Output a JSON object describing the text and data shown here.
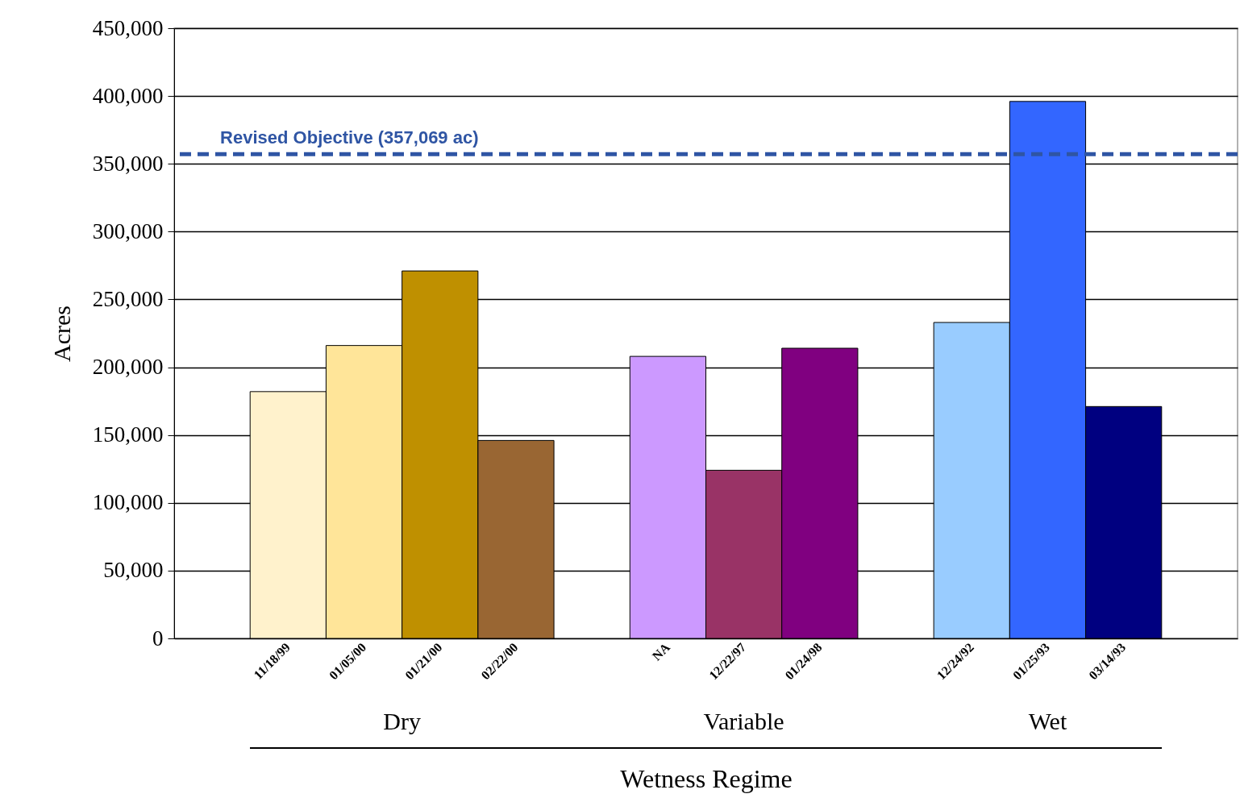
{
  "chart_data": {
    "type": "bar",
    "xlabel": "Wetness Regime",
    "ylabel": "Acres",
    "categories": [
      null,
      "11/18/99",
      "01/05/00",
      "01/21/00",
      "02/22/00",
      null,
      "NA",
      "12/22/97",
      "01/24/98",
      null,
      "12/24/92",
      "01/25/93",
      "03/14/93",
      null
    ],
    "values": [
      null,
      182000,
      216000,
      271000,
      146000,
      null,
      208000,
      124000,
      214000,
      null,
      233000,
      396000,
      171000,
      null
    ],
    "colors": [
      null,
      "#fff2cc",
      "#ffe599",
      "#bf9000",
      "#996633",
      null,
      "#cc99ff",
      "#993366",
      "#800080",
      null,
      "#99ccff",
      "#3366ff",
      "#000080",
      null
    ],
    "annotations": [
      "Dry",
      "Variable",
      "Wet"
    ],
    "ylim": [
      0,
      450000
    ],
    "yticks": [
      0,
      {
        "value": 50000,
        "label": "50,000"
      },
      {
        "value": 100000,
        "label": "100,000"
      },
      {
        "value": 150000,
        "label": "150,000"
      },
      {
        "value": 200000,
        "label": "200,000"
      },
      {
        "value": 250000,
        "label": "250,000"
      },
      {
        "value": 300000,
        "label": "300,000"
      },
      {
        "value": 350000,
        "label": "350,000"
      },
      {
        "value": 400000,
        "label": "400,000"
      },
      {
        "value": 450000,
        "label": "450,000"
      }
    ],
    "grid": "y",
    "ref_lines": [
      {
        "axis": "y",
        "value": 357069,
        "label": "Revised Objective (357,069 ac)",
        "color": "#2f55a4",
        "line_style": "dashed"
      }
    ]
  }
}
